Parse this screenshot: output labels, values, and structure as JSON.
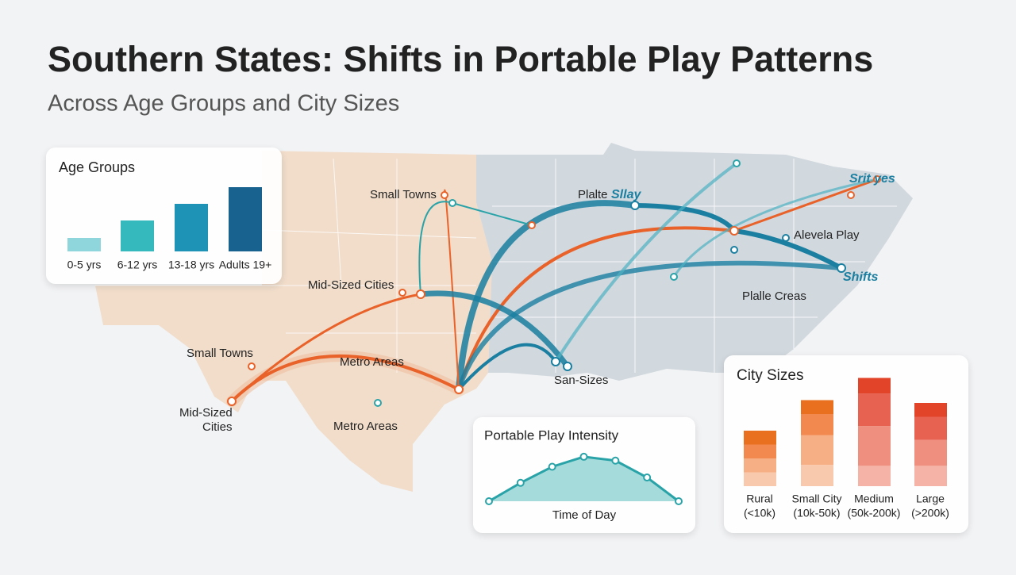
{
  "title": "Southern States: Shifts in Portable Play Patterns",
  "subtitle": "Across Age Groups and City Sizes",
  "map": {
    "labels": [
      "Small Towns",
      "Plalte",
      "Sllay",
      "Srit yes",
      "Alevela Play",
      "Shifts",
      "Plalle Creas",
      "Mid-Sized Cities",
      "Small Towns",
      "Metro Areas",
      "San-Sizes",
      "Mid-Sized",
      "Cities",
      "Metro Areas"
    ]
  },
  "chart_data": [
    {
      "type": "bar",
      "title": "Age Groups",
      "categories": [
        "0-5 yrs",
        "6-12 yrs",
        "13-18 yrs",
        "Adults 19+"
      ],
      "values": [
        17,
        39,
        60,
        81
      ],
      "colors": [
        "#8fd6dc",
        "#35b9bd",
        "#1f93b5",
        "#17628f"
      ],
      "ylim": [
        0,
        100
      ]
    },
    {
      "type": "stacked",
      "title": "City Sizes",
      "categories": [
        [
          "Rural",
          "(<10k)"
        ],
        [
          "Small City",
          "(10k-50k)"
        ],
        [
          "Medium",
          "(50k-200k)"
        ],
        [
          "Large",
          "(>200k)"
        ]
      ],
      "series": [
        {
          "values": [
            15,
            23,
            22,
            22
          ],
          "colors": [
            "#f9c9ad",
            "#f9c9ad",
            "#f4b3a6",
            "#f4b3a6"
          ]
        },
        {
          "values": [
            15,
            32,
            43,
            28
          ],
          "colors": [
            "#f6ae84",
            "#f6ae84",
            "#ee8f7f",
            "#ee8f7f"
          ]
        },
        {
          "values": [
            15,
            23,
            35,
            25
          ],
          "colors": [
            "#f28a4f",
            "#f28a4f",
            "#e86252",
            "#e86252"
          ]
        },
        {
          "values": [
            15,
            15,
            17,
            15
          ],
          "colors": [
            "#e8701f",
            "#e8701f",
            "#e2442a",
            "#e2442a"
          ]
        }
      ],
      "ylim": [
        0,
        120
      ]
    },
    {
      "type": "line",
      "title": "Portable Play Intensity",
      "xlabel": "Time of Day",
      "categories": [
        null,
        null,
        null,
        null,
        null,
        null,
        null
      ],
      "values": [
        0,
        24,
        45,
        58,
        53,
        31,
        0
      ],
      "color": "#2aa3a8",
      "ylim": [
        0,
        60
      ]
    }
  ]
}
